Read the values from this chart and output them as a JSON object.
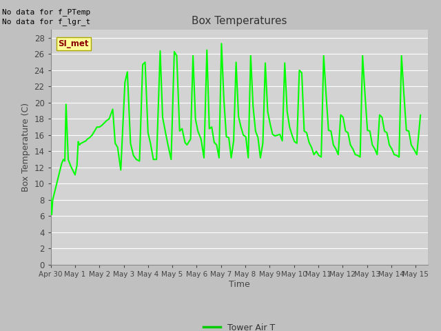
{
  "title": "Box Temperatures",
  "xlabel": "Time",
  "ylabel": "Box Temperature (C)",
  "line_color": "#00ff00",
  "line_width": 1.5,
  "ylim": [
    0,
    29
  ],
  "yticks": [
    0,
    2,
    4,
    6,
    8,
    10,
    12,
    14,
    16,
    18,
    20,
    22,
    24,
    26,
    28
  ],
  "legend_label": "Tower Air T",
  "legend_line_color": "#00cc00",
  "annotation_text1": "No data for f_PTemp",
  "annotation_text2": "No data for f_lgr_t",
  "box_label": "SI_met",
  "xtick_labels": [
    "Apr 30",
    "May 1",
    "May 2",
    "May 3",
    "May 4",
    "May 5",
    "May 6",
    "May 7",
    "May 8",
    "May 9",
    "May 10",
    "May 11",
    "May 12",
    "May 13",
    "May 14",
    "May 15"
  ],
  "time_values": [
    0.0,
    0.04,
    0.08,
    0.45,
    0.52,
    0.58,
    0.63,
    0.72,
    0.82,
    1.0,
    1.08,
    1.13,
    1.18,
    1.25,
    1.32,
    1.38,
    1.45,
    1.5,
    1.6,
    1.7,
    1.8,
    1.9,
    2.0,
    2.1,
    2.2,
    2.3,
    2.4,
    2.55,
    2.65,
    2.75,
    2.88,
    3.05,
    3.15,
    3.28,
    3.4,
    3.52,
    3.65,
    3.78,
    3.88,
    4.0,
    4.1,
    4.22,
    4.35,
    4.5,
    4.6,
    4.72,
    4.82,
    4.95,
    5.08,
    5.18,
    5.3,
    5.4,
    5.52,
    5.6,
    5.75,
    5.85,
    5.95,
    6.05,
    6.18,
    6.3,
    6.42,
    6.52,
    6.62,
    6.72,
    6.82,
    6.92,
    7.02,
    7.12,
    7.22,
    7.32,
    7.42,
    7.52,
    7.62,
    7.72,
    7.82,
    7.92,
    8.02,
    8.12,
    8.22,
    8.32,
    8.42,
    8.52,
    8.62,
    8.72,
    8.82,
    8.92,
    9.02,
    9.12,
    9.22,
    9.32,
    9.42,
    9.52,
    9.62,
    9.72,
    9.82,
    9.92,
    10.02,
    10.12,
    10.22,
    10.32,
    10.42,
    10.52,
    10.62,
    10.72,
    10.82,
    10.92,
    11.02,
    11.12,
    11.22,
    11.32,
    11.42,
    11.52,
    11.62,
    11.72,
    11.82,
    11.92,
    12.02,
    12.12,
    12.22,
    12.32,
    12.42,
    12.52,
    12.62,
    12.72,
    12.82,
    12.92,
    13.02,
    13.12,
    13.22,
    13.32,
    13.42,
    13.52,
    13.62,
    13.72,
    13.82,
    13.92,
    14.02,
    14.12,
    14.22,
    14.32,
    14.42,
    14.52,
    14.62,
    14.72,
    14.82,
    14.92,
    15.05,
    15.2
  ],
  "temp_values": [
    8.3,
    6.2,
    8.0,
    12.5,
    13.0,
    12.8,
    19.8,
    13.0,
    12.2,
    11.1,
    12.3,
    15.2,
    14.8,
    15.0,
    15.1,
    15.2,
    15.3,
    15.5,
    15.7,
    16.0,
    16.5,
    17.0,
    17.0,
    17.2,
    17.5,
    17.8,
    18.0,
    19.2,
    15.0,
    14.5,
    11.7,
    22.5,
    23.8,
    15.0,
    13.5,
    13.0,
    12.8,
    24.7,
    25.0,
    16.3,
    15.0,
    13.0,
    13.0,
    26.4,
    18.2,
    16.3,
    14.8,
    13.0,
    26.3,
    25.8,
    16.5,
    16.8,
    15.1,
    14.8,
    15.5,
    25.8,
    18.0,
    16.5,
    15.5,
    13.2,
    26.5,
    16.8,
    17.0,
    15.1,
    14.8,
    13.2,
    27.3,
    20.3,
    15.8,
    15.7,
    13.2,
    15.3,
    25.0,
    18.3,
    17.0,
    16.0,
    15.8,
    13.2,
    25.8,
    19.5,
    16.5,
    15.7,
    13.2,
    15.0,
    24.9,
    18.9,
    17.4,
    16.1,
    15.9,
    16.0,
    16.1,
    15.3,
    24.9,
    18.9,
    17.0,
    16.0,
    15.2,
    15.0,
    24.0,
    23.7,
    16.5,
    16.3,
    15.1,
    14.5,
    13.6,
    14.0,
    13.5,
    13.3,
    25.8,
    21.0,
    16.6,
    16.5,
    14.8,
    14.3,
    13.6,
    18.5,
    18.2,
    16.5,
    16.3,
    14.8,
    14.3,
    13.6,
    13.5,
    13.3,
    25.8,
    21.0,
    16.6,
    16.5,
    14.8,
    14.3,
    13.6,
    18.5,
    18.2,
    16.5,
    16.3,
    14.8,
    14.3,
    13.6,
    13.5,
    13.3,
    25.8,
    21.0,
    16.6,
    16.5,
    14.8,
    14.3,
    13.6,
    18.5
  ],
  "grid_color": "#ffffff",
  "face_color": "#d3d3d3",
  "fig_bg_color": "#c0c0c0"
}
